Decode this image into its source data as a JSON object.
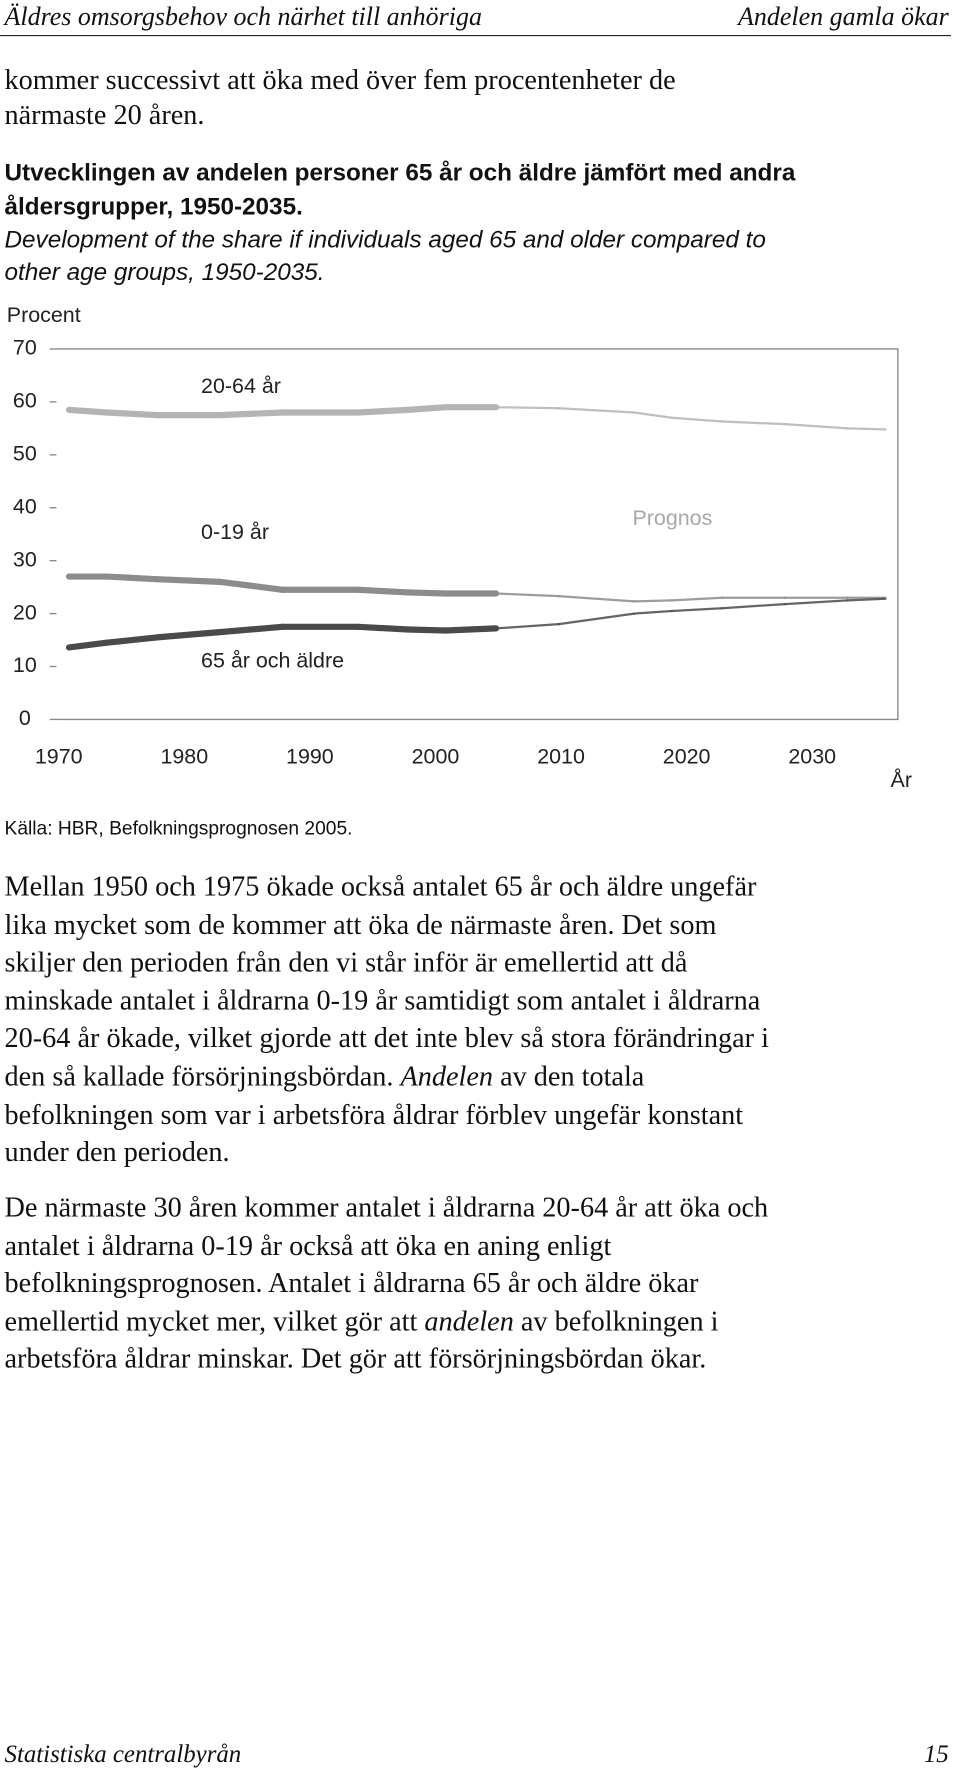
{
  "header": {
    "left": "Äldres omsorgsbehov och närhet till anhöriga",
    "right": "Andelen gamla ökar"
  },
  "intro": [
    "kommer successivt att öka med över fem procentenheter de",
    "närmaste 20 åren."
  ],
  "figure": {
    "title": [
      "Utvecklingen av andelen personer 65 år och äldre jämfört med andra",
      "åldersgrupper, 1950-2035."
    ],
    "subtitle": [
      "Development of the share if individuals aged 65 and older compared to",
      "other age groups, 1950-2035."
    ],
    "source": "Källa: HBR, Befolkningsprognosen 2005."
  },
  "chart_data": {
    "type": "line",
    "y_label": "Procent",
    "x_label": "År",
    "annotation": "Prognos",
    "xlim": [
      1970,
      2037
    ],
    "xticks": [
      1970,
      1980,
      1990,
      2000,
      2010,
      2020,
      2030
    ],
    "ylim": [
      0,
      70
    ],
    "yticks": [
      0,
      10,
      20,
      30,
      40,
      50,
      60,
      70
    ],
    "forecast_from": 2005,
    "x": [
      1971,
      1974,
      1978,
      1983,
      1988,
      1994,
      1998,
      2001,
      2005,
      2010,
      2016,
      2019,
      2023,
      2028,
      2033,
      2036
    ],
    "series": [
      {
        "name": "20-64 år",
        "color": "#b4b4b4",
        "values": [
          58.5,
          58,
          57.5,
          57.5,
          58,
          58,
          58.5,
          59,
          59,
          58.8,
          58,
          57,
          56.3,
          55.8,
          55,
          54.8
        ]
      },
      {
        "name": "0-19 år",
        "color": "#8c8c8c",
        "values": [
          27,
          27,
          26.5,
          26,
          24.5,
          24.5,
          24,
          23.8,
          23.8,
          23.3,
          22.3,
          22.5,
          23,
          23,
          23,
          23
        ]
      },
      {
        "name": "65 år och äldre",
        "color": "#4a4a4a",
        "values": [
          13.6,
          14.5,
          15.5,
          16.5,
          17.5,
          17.5,
          17,
          16.8,
          17.2,
          18,
          20,
          20.5,
          21,
          21.8,
          22.5,
          22.8
        ]
      }
    ]
  },
  "paragraphs": [
    [
      [
        "Mellan 1950 och 1975 ökade också antalet 65 år och äldre ungefär"
      ],
      [
        "lika mycket som de kommer att öka de närmaste åren. Det som"
      ],
      [
        "skiljer den perioden från den vi står inför är emellertid att då"
      ],
      [
        "minskade antalet i åldrarna 0-19 år samtidigt som antalet i åldrarna"
      ],
      [
        "20-64 år ökade, vilket gjorde att det inte blev så stora förändringar i"
      ],
      [
        "den så kallade försörjningsbördan. ",
        {
          "text": "Andelen",
          "em": true
        },
        " av den totala"
      ],
      [
        "befolkningen som var i arbetsföra åldrar förblev ungefär konstant"
      ],
      [
        "under den perioden."
      ]
    ],
    [
      [
        "De närmaste 30 åren kommer antalet i åldrarna 20-64 år att öka och"
      ],
      [
        "antalet i åldrarna 0-19 år också att öka en aning enligt"
      ],
      [
        "befolkningsprognosen. Antalet i åldrarna 65 år och äldre ökar"
      ],
      [
        "emellertid mycket mer, vilket gör att ",
        {
          "text": "andelen",
          "em": true
        },
        " av befolkningen i"
      ],
      [
        "arbetsföra åldrar minskar. Det gör att försörjningsbördan ökar."
      ]
    ]
  ],
  "footer": {
    "left": "Statistiska centralbyrån",
    "right": "15"
  }
}
